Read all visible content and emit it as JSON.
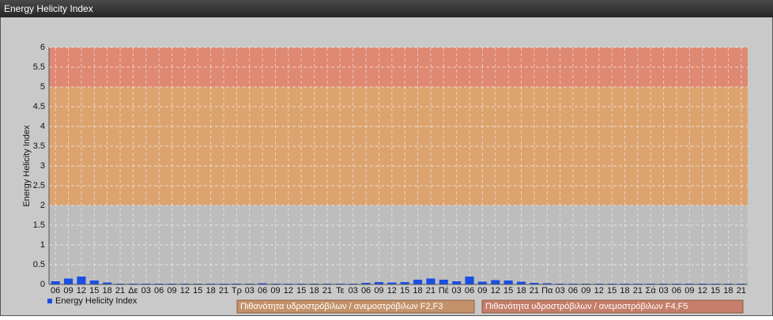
{
  "window_title": "Energy Helicity Index",
  "chart_data": {
    "type": "bar",
    "y_label": "Energy Helicity Index",
    "categories": [
      "06",
      "09",
      "12",
      "15",
      "18",
      "21",
      "Δε",
      "03",
      "06",
      "09",
      "12",
      "15",
      "18",
      "21",
      "Τρ",
      "03",
      "06",
      "09",
      "12",
      "15",
      "18",
      "21",
      "Τε",
      "03",
      "06",
      "09",
      "12",
      "15",
      "18",
      "21",
      "Πέ",
      "03",
      "06",
      "09",
      "12",
      "15",
      "18",
      "21",
      "Πα",
      "03",
      "06",
      "09",
      "12",
      "15",
      "18",
      "21",
      "Σά",
      "03",
      "06",
      "09",
      "12",
      "15",
      "18",
      "21"
    ],
    "series": [
      {
        "name": "Energy Helicity Index",
        "color": "#1a4fe6",
        "values": [
          0.08,
          0.15,
          0.2,
          0.1,
          0.05,
          0.02,
          0.02,
          0.02,
          0.02,
          0.02,
          0.02,
          0.02,
          0.02,
          0.02,
          0.02,
          0.02,
          0.03,
          0.02,
          0.02,
          0.02,
          0.02,
          0.02,
          0.02,
          0.02,
          0.04,
          0.06,
          0.05,
          0.06,
          0.12,
          0.15,
          0.12,
          0.08,
          0.2,
          0.07,
          0.11,
          0.1,
          0.07,
          0.04,
          0.03,
          0.02,
          0.02,
          0.02,
          0.02,
          0.02,
          0.02,
          0.02,
          0.02,
          0.02,
          0.02,
          0.02,
          0.02,
          0.02,
          0.02,
          0.02
        ]
      }
    ],
    "bands": [
      {
        "from": 0,
        "to": 2,
        "color": "#bdbdbd"
      },
      {
        "from": 2,
        "to": 5,
        "color": "#dda36f",
        "label": "Πιθανότητα υδροστρόβιλων / ανεμοστρόβιλων F2,F3",
        "legend_color": "#c4926a"
      },
      {
        "from": 5,
        "to": 6,
        "color": "#df8872",
        "label": "Πιθανότητα υδροστρόβιλων / ανεμοστρόβιλων F4,F5",
        "legend_color": "#c47e6a"
      }
    ],
    "ylim": [
      0,
      6
    ],
    "yticks": [
      0,
      0.5,
      1,
      1.5,
      2,
      2.5,
      3,
      3.5,
      4,
      4.5,
      5,
      5.5,
      6
    ],
    "grid": true
  }
}
